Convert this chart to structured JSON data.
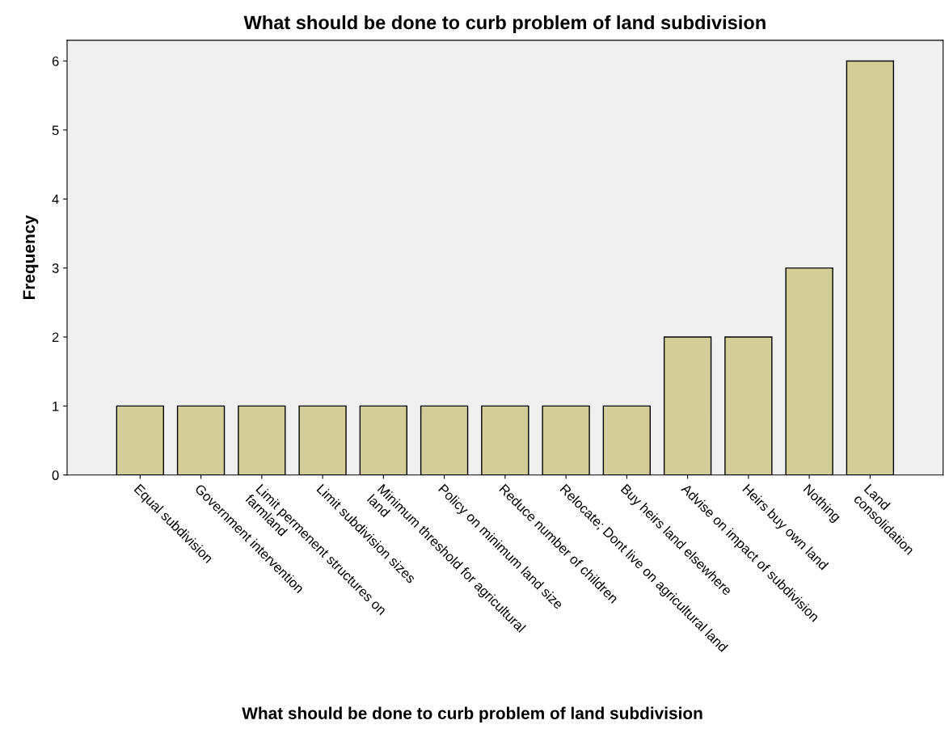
{
  "chart_data": {
    "type": "bar",
    "title": "What should be done to curb problem of land subdivision",
    "xlabel": "What should be done to curb problem of land subdivision",
    "ylabel": "Frequency",
    "categories": [
      "Equal subdivision",
      "Government intervention",
      "Limit permenent structures on\nfarmland",
      "Limit subdivision sizes",
      "Minimum threshold for agricultural\nland",
      "Policy on minimum land size",
      "Reduce number of children",
      "Relocate; Dont live on agricultural land",
      "Buy heirs land elsewhere",
      "Advise on impact of subdivision",
      "Heirs buy own land",
      "Nothing",
      "Land\nconsolidation"
    ],
    "values": [
      1,
      1,
      1,
      1,
      1,
      1,
      1,
      1,
      1,
      2,
      2,
      3,
      6
    ],
    "color": "#d3ce98",
    "ylim": [
      0,
      6.3
    ],
    "yticks": [
      0,
      1,
      2,
      3,
      4,
      5,
      6
    ],
    "grid": false
  }
}
